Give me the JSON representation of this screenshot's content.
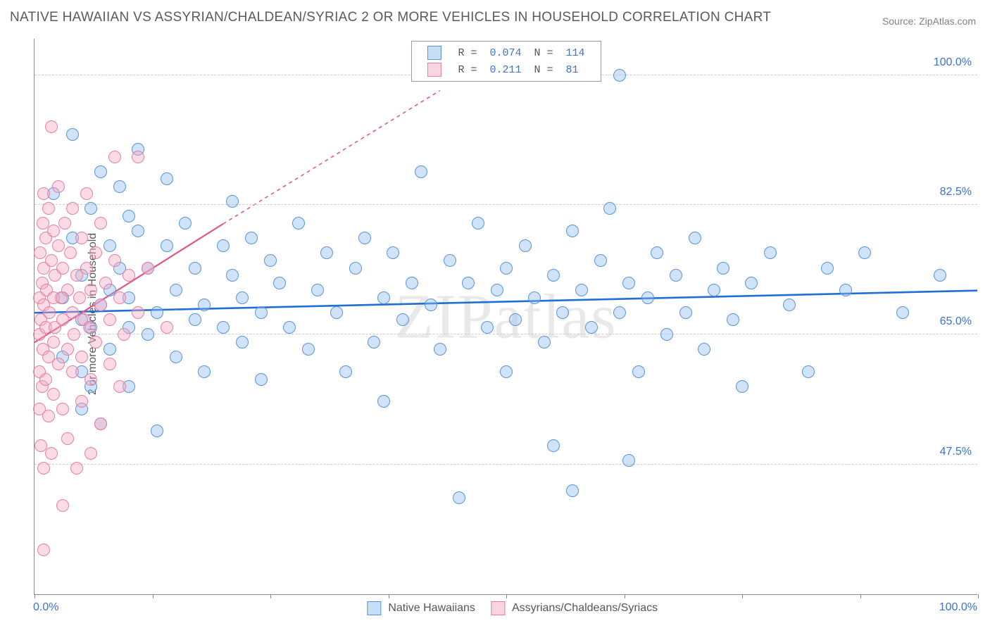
{
  "title": "NATIVE HAWAIIAN VS ASSYRIAN/CHALDEAN/SYRIAC 2 OR MORE VEHICLES IN HOUSEHOLD CORRELATION CHART",
  "source": "Source: ZipAtlas.com",
  "watermark": "ZIPatlas",
  "ylabel": "2 or more Vehicles in Household",
  "chart": {
    "type": "scatter",
    "xlim": [
      0,
      100
    ],
    "ylim": [
      30,
      105
    ],
    "background_color": "#ffffff",
    "grid_color": "#cccccc",
    "yticks": [
      {
        "value": 47.5,
        "label": "47.5%"
      },
      {
        "value": 65.0,
        "label": "65.0%"
      },
      {
        "value": 82.5,
        "label": "82.5%"
      },
      {
        "value": 100.0,
        "label": "100.0%"
      }
    ],
    "xticks_major": [
      0,
      100
    ],
    "xticks_minor_count": 8,
    "xlabel_0": "0.0%",
    "xlabel_100": "100.0%",
    "marker_radius": 9,
    "series": [
      {
        "id": "blue",
        "label": "Native Hawaiians",
        "R": "0.074",
        "N": "114",
        "fill": "rgba(144,189,240,0.42)",
        "stroke": "#5894d8",
        "trend": {
          "x1": 0,
          "y1": 68,
          "x2": 100,
          "y2": 71,
          "dashed_after": null,
          "color": "#1f6fd4",
          "width": 2.6
        },
        "points": [
          [
            2,
            84
          ],
          [
            3,
            70
          ],
          [
            3,
            62
          ],
          [
            4,
            78
          ],
          [
            4,
            92
          ],
          [
            5,
            55
          ],
          [
            5,
            67
          ],
          [
            5,
            60
          ],
          [
            5,
            73
          ],
          [
            6,
            82
          ],
          [
            6,
            66
          ],
          [
            6,
            58
          ],
          [
            7,
            87
          ],
          [
            7,
            53
          ],
          [
            7,
            69
          ],
          [
            8,
            77
          ],
          [
            8,
            63
          ],
          [
            8,
            71
          ],
          [
            9,
            85
          ],
          [
            9,
            74
          ],
          [
            10,
            66
          ],
          [
            10,
            81
          ],
          [
            10,
            58
          ],
          [
            10,
            70
          ],
          [
            11,
            79
          ],
          [
            11,
            90
          ],
          [
            12,
            65
          ],
          [
            12,
            74
          ],
          [
            13,
            68
          ],
          [
            13,
            52
          ],
          [
            14,
            77
          ],
          [
            14,
            86
          ],
          [
            15,
            62
          ],
          [
            15,
            71
          ],
          [
            16,
            80
          ],
          [
            17,
            67
          ],
          [
            17,
            74
          ],
          [
            18,
            69
          ],
          [
            18,
            60
          ],
          [
            20,
            77
          ],
          [
            20,
            66
          ],
          [
            21,
            73
          ],
          [
            21,
            83
          ],
          [
            22,
            64
          ],
          [
            22,
            70
          ],
          [
            23,
            78
          ],
          [
            24,
            59
          ],
          [
            24,
            68
          ],
          [
            25,
            75
          ],
          [
            26,
            72
          ],
          [
            27,
            66
          ],
          [
            28,
            80
          ],
          [
            29,
            63
          ],
          [
            30,
            71
          ],
          [
            31,
            76
          ],
          [
            32,
            68
          ],
          [
            33,
            60
          ],
          [
            34,
            74
          ],
          [
            35,
            78
          ],
          [
            36,
            64
          ],
          [
            37,
            70
          ],
          [
            37,
            56
          ],
          [
            38,
            76
          ],
          [
            39,
            67
          ],
          [
            40,
            72
          ],
          [
            41,
            87
          ],
          [
            42,
            69
          ],
          [
            43,
            63
          ],
          [
            44,
            75
          ],
          [
            45,
            43
          ],
          [
            46,
            72
          ],
          [
            47,
            80
          ],
          [
            48,
            66
          ],
          [
            49,
            71
          ],
          [
            50,
            74
          ],
          [
            50,
            60
          ],
          [
            51,
            67
          ],
          [
            52,
            77
          ],
          [
            53,
            70
          ],
          [
            54,
            64
          ],
          [
            55,
            73
          ],
          [
            55,
            50
          ],
          [
            56,
            68
          ],
          [
            57,
            79
          ],
          [
            57,
            44
          ],
          [
            58,
            71
          ],
          [
            59,
            66
          ],
          [
            60,
            75
          ],
          [
            61,
            82
          ],
          [
            62,
            68
          ],
          [
            62,
            100
          ],
          [
            63,
            72
          ],
          [
            63,
            48
          ],
          [
            64,
            60
          ],
          [
            65,
            70
          ],
          [
            66,
            76
          ],
          [
            67,
            65
          ],
          [
            68,
            73
          ],
          [
            69,
            68
          ],
          [
            70,
            78
          ],
          [
            71,
            63
          ],
          [
            72,
            71
          ],
          [
            73,
            74
          ],
          [
            74,
            67
          ],
          [
            75,
            58
          ],
          [
            76,
            72
          ],
          [
            78,
            76
          ],
          [
            80,
            69
          ],
          [
            82,
            60
          ],
          [
            84,
            74
          ],
          [
            86,
            71
          ],
          [
            88,
            76
          ],
          [
            92,
            68
          ],
          [
            96,
            73
          ]
        ]
      },
      {
        "id": "pink",
        "label": "Assyrians/Chaldeans/Syriacs",
        "R": "0.211",
        "N": "81",
        "fill": "rgba(246,170,193,0.42)",
        "stroke": "#e67fa4",
        "trend": {
          "x1": 0,
          "y1": 64,
          "x2": 20,
          "y2": 80,
          "dashed_after": 20,
          "dashed_x2": 43,
          "dashed_y2": 98,
          "color": "#e15584",
          "width": 2.2
        },
        "points": [
          [
            0.5,
            70
          ],
          [
            0.5,
            65
          ],
          [
            0.5,
            60
          ],
          [
            0.5,
            55
          ],
          [
            0.6,
            76
          ],
          [
            0.7,
            50
          ],
          [
            0.7,
            67
          ],
          [
            0.8,
            72
          ],
          [
            0.8,
            58
          ],
          [
            0.9,
            63
          ],
          [
            0.9,
            80
          ],
          [
            1,
            47
          ],
          [
            1,
            69
          ],
          [
            1,
            74
          ],
          [
            1,
            84
          ],
          [
            1,
            36
          ],
          [
            1.2,
            78
          ],
          [
            1.2,
            66
          ],
          [
            1.2,
            59
          ],
          [
            1.3,
            71
          ],
          [
            1.5,
            62
          ],
          [
            1.5,
            82
          ],
          [
            1.5,
            54
          ],
          [
            1.6,
            68
          ],
          [
            1.8,
            75
          ],
          [
            1.8,
            49
          ],
          [
            1.8,
            93
          ],
          [
            2,
            64
          ],
          [
            2,
            70
          ],
          [
            2,
            79
          ],
          [
            2,
            57
          ],
          [
            2.2,
            73
          ],
          [
            2.2,
            66
          ],
          [
            2.5,
            61
          ],
          [
            2.5,
            77
          ],
          [
            2.5,
            85
          ],
          [
            2.8,
            70
          ],
          [
            3,
            55
          ],
          [
            3,
            67
          ],
          [
            3,
            74
          ],
          [
            3,
            42
          ],
          [
            3.2,
            80
          ],
          [
            3.5,
            63
          ],
          [
            3.5,
            71
          ],
          [
            3.5,
            51
          ],
          [
            3.8,
            76
          ],
          [
            4,
            68
          ],
          [
            4,
            60
          ],
          [
            4,
            82
          ],
          [
            4.2,
            65
          ],
          [
            4.5,
            73
          ],
          [
            4.5,
            47
          ],
          [
            4.8,
            70
          ],
          [
            5,
            78
          ],
          [
            5,
            62
          ],
          [
            5,
            56
          ],
          [
            5.2,
            67
          ],
          [
            5.5,
            74
          ],
          [
            5.5,
            84
          ],
          [
            5.8,
            66
          ],
          [
            6,
            71
          ],
          [
            6,
            59
          ],
          [
            6,
            49
          ],
          [
            6.5,
            76
          ],
          [
            6.5,
            64
          ],
          [
            7,
            69
          ],
          [
            7,
            80
          ],
          [
            7,
            53
          ],
          [
            7.5,
            72
          ],
          [
            8,
            67
          ],
          [
            8,
            61
          ],
          [
            8.5,
            75
          ],
          [
            8.5,
            89
          ],
          [
            9,
            70
          ],
          [
            9,
            58
          ],
          [
            9.5,
            65
          ],
          [
            10,
            73
          ],
          [
            11,
            68
          ],
          [
            11,
            89
          ],
          [
            12,
            74
          ],
          [
            14,
            66
          ]
        ]
      }
    ]
  }
}
